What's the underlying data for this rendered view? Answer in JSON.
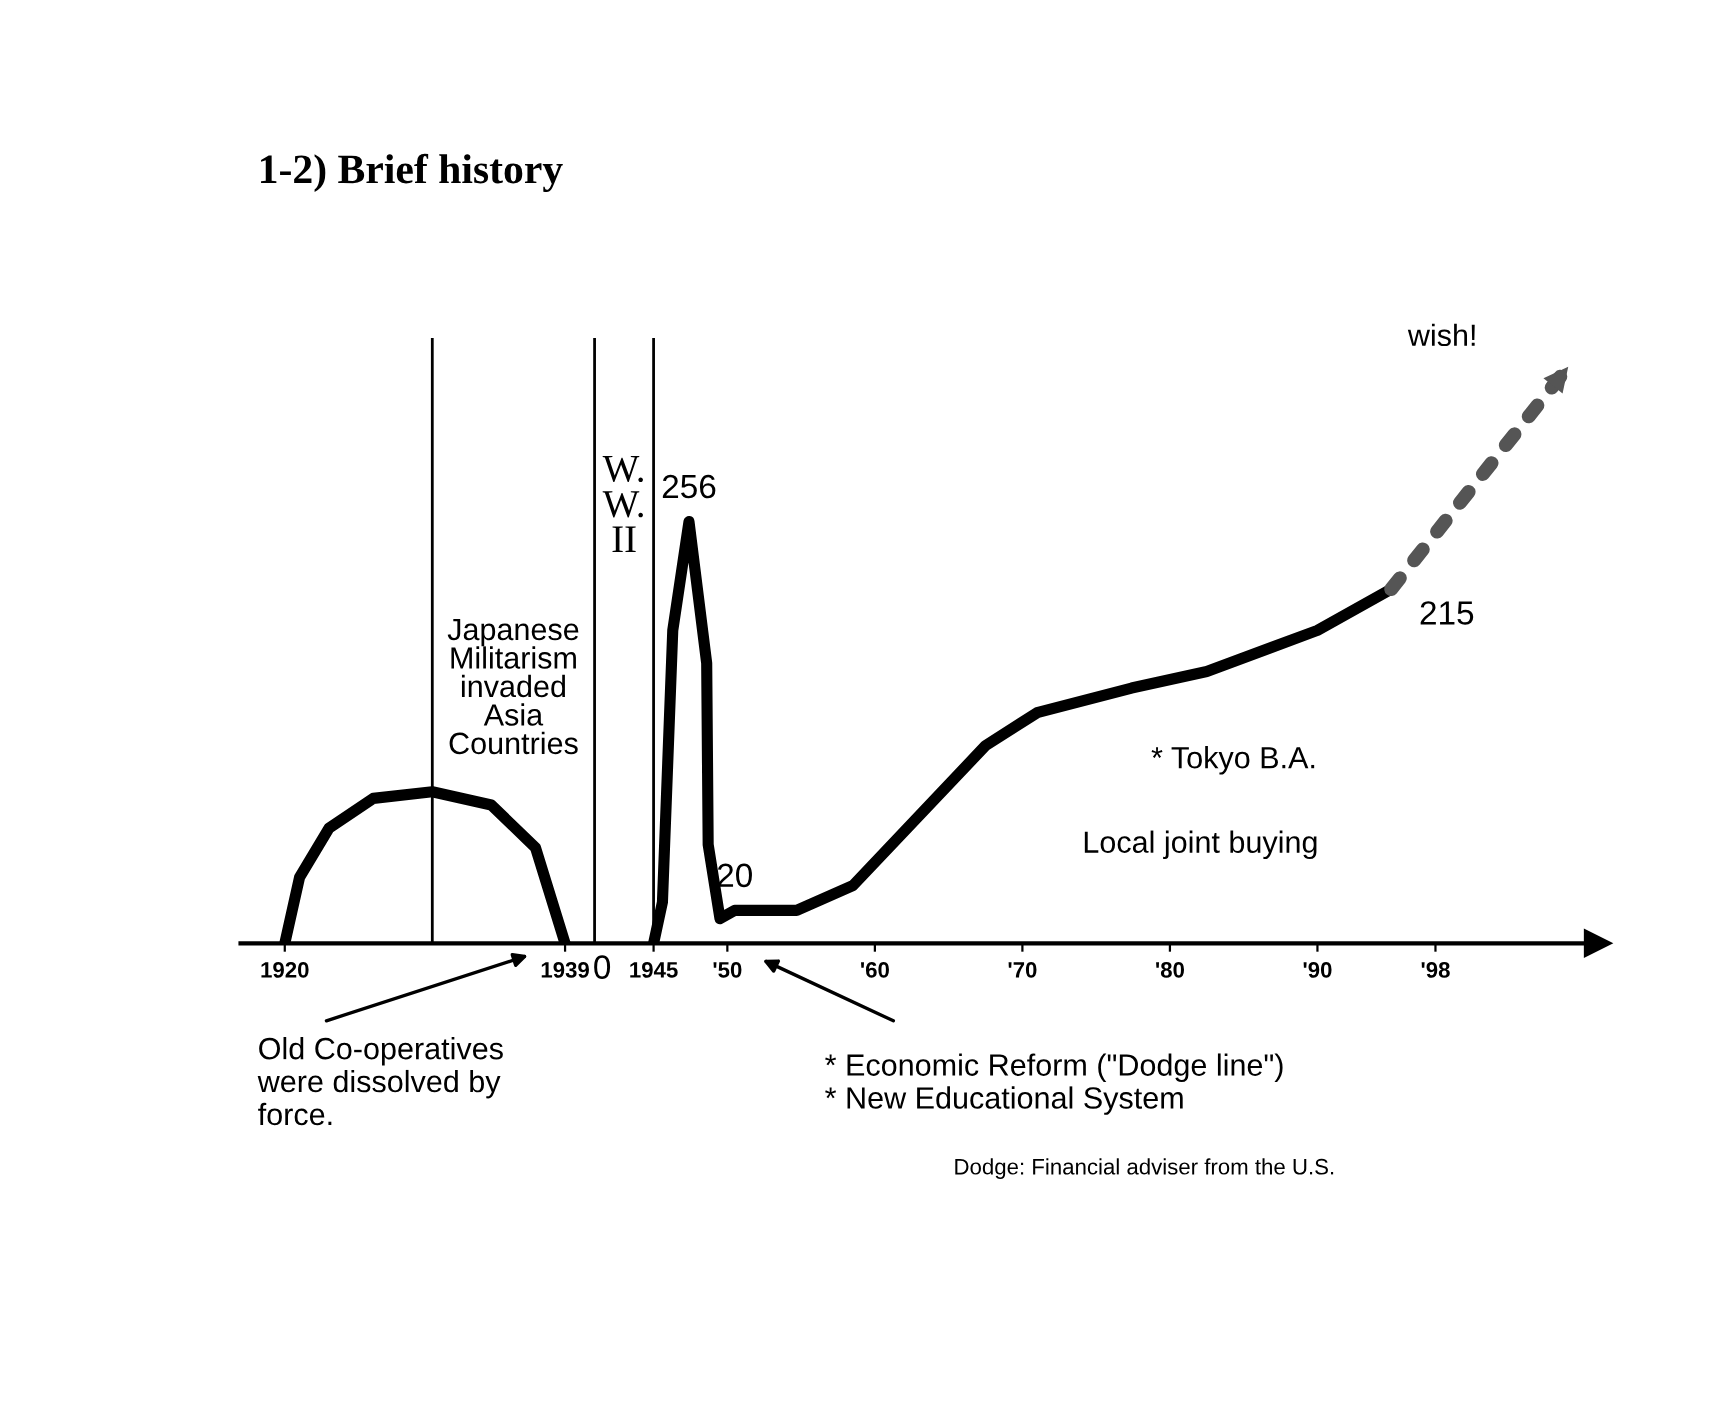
{
  "chart_data": {
    "type": "line",
    "title": "1-2) Brief history",
    "tick_labels": "x",
    "xlim": [
      1917,
      2009
    ],
    "xticks": [
      1920,
      1939,
      1945,
      {
        "value": 1950,
        "label": "'50"
      },
      {
        "value": 1960,
        "label": "'60"
      },
      {
        "value": 1970,
        "label": "'70"
      },
      {
        "value": 1980,
        "label": "'80"
      },
      {
        "value": 1990,
        "label": "'90"
      },
      {
        "value": 1998,
        "label": "'98"
      }
    ],
    "series": [
      {
        "color": "#000000",
        "line_style": "solid",
        "x": [
          1920,
          1921,
          1923,
          1926,
          1930,
          1934,
          1937,
          1939
        ],
        "values": [
          0,
          40,
          70,
          88,
          92,
          84,
          58,
          0
        ],
        "value_labels": [
          null,
          null,
          null,
          null,
          null,
          null,
          null,
          "0"
        ]
      },
      {
        "color": "#000000",
        "line_style": "solid",
        "x": [
          1945,
          1945.6,
          1946.3,
          1947.4,
          1948.6,
          1948.7,
          1949.5,
          1950.5,
          1954.7,
          1958.5,
          1967.5,
          1971,
          1977.4,
          1982.5,
          1990,
          1995
        ],
        "values": [
          0,
          25,
          190,
          256,
          170,
          60,
          15,
          20,
          20,
          35,
          120,
          140,
          155,
          165,
          190,
          215
        ],
        "value_labels": [
          null,
          null,
          null,
          "256",
          null,
          null,
          null,
          "20",
          null,
          null,
          null,
          null,
          null,
          null,
          null,
          "215"
        ]
      },
      {
        "color": "#555555",
        "line_style": "dotted",
        "x": [
          1995,
          2007
        ],
        "values": [
          215,
          350
        ]
      }
    ],
    "ref_lines": [
      {
        "axis": "x",
        "value": 1930,
        "color": "#000000"
      },
      {
        "axis": "x",
        "value": 1941,
        "color": "#000000"
      },
      {
        "axis": "x",
        "value": 1945,
        "color": "#000000"
      }
    ],
    "annotations": [
      "W.\nW.\nII",
      "Japanese\nMilitarism\ninvaded\nAsia\nCountries",
      "* Tokyo B.A.",
      "Local joint buying",
      "wish!",
      "Old Co-operatives\nwere dissolved by\nforce.",
      "* Economic Reform (\"Dodge line\")\n* New Educational System",
      "Dodge: Financial adviser from the U.S."
    ],
    "grid": false,
    "marker": "none"
  }
}
